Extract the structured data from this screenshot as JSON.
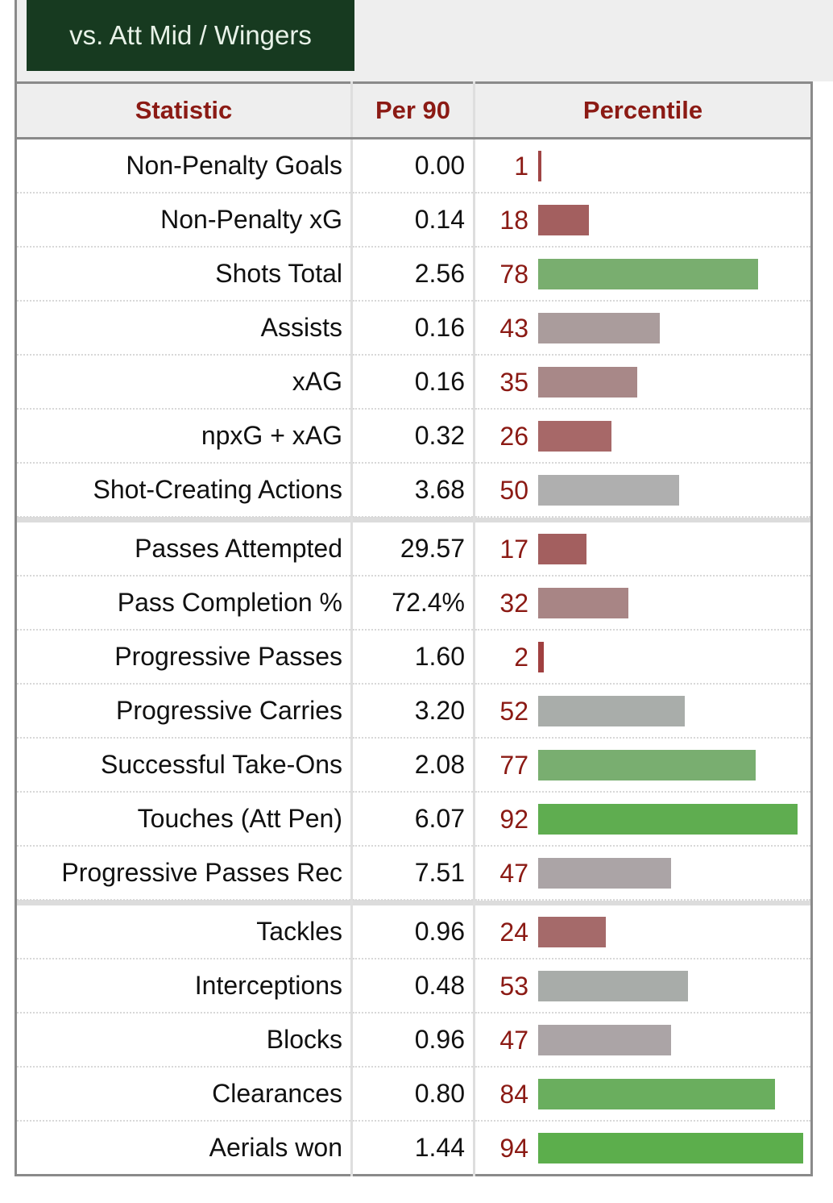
{
  "tab_label": "vs. Att Mid / Wingers",
  "headers": {
    "statistic": "Statistic",
    "per90": "Per 90",
    "percentile": "Percentile"
  },
  "groups": [
    [
      {
        "stat": "Non-Penalty Goals",
        "per90": "0.00",
        "percentile": "1",
        "pct": 1,
        "color": "#a04545"
      },
      {
        "stat": "Non-Penalty xG",
        "per90": "0.14",
        "percentile": "18",
        "pct": 18,
        "color": "#a35f5f"
      },
      {
        "stat": "Shots Total",
        "per90": "2.56",
        "percentile": "78",
        "pct": 78,
        "color": "#79ae6f"
      },
      {
        "stat": "Assists",
        "per90": "0.16",
        "percentile": "43",
        "pct": 43,
        "color": "#aa9c9c"
      },
      {
        "stat": "xAG",
        "per90": "0.16",
        "percentile": "35",
        "pct": 35,
        "color": "#a88888"
      },
      {
        "stat": "npxG + xAG",
        "per90": "0.32",
        "percentile": "26",
        "pct": 26,
        "color": "#a76868"
      },
      {
        "stat": "Shot-Creating Actions",
        "per90": "3.68",
        "percentile": "50",
        "pct": 50,
        "color": "#afafaf"
      }
    ],
    [
      {
        "stat": "Passes Attempted",
        "per90": "29.57",
        "percentile": "17",
        "pct": 17,
        "color": "#a35f5f"
      },
      {
        "stat": "Pass Completion %",
        "per90": "72.4%",
        "percentile": "32",
        "pct": 32,
        "color": "#a88585"
      },
      {
        "stat": "Progressive Passes",
        "per90": "1.60",
        "percentile": "2",
        "pct": 2,
        "color": "#a04040"
      },
      {
        "stat": "Progressive Carries",
        "per90": "3.20",
        "percentile": "52",
        "pct": 52,
        "color": "#a9adaa"
      },
      {
        "stat": "Successful Take-Ons",
        "per90": "2.08",
        "percentile": "77",
        "pct": 77,
        "color": "#79ae70"
      },
      {
        "stat": "Touches (Att Pen)",
        "per90": "6.07",
        "percentile": "92",
        "pct": 92,
        "color": "#5fad50"
      },
      {
        "stat": "Progressive Passes Rec",
        "per90": "7.51",
        "percentile": "47",
        "pct": 47,
        "color": "#aba4a6"
      }
    ],
    [
      {
        "stat": "Tackles",
        "per90": "0.96",
        "percentile": "24",
        "pct": 24,
        "color": "#a56a6a"
      },
      {
        "stat": "Interceptions",
        "per90": "0.48",
        "percentile": "53",
        "pct": 53,
        "color": "#a8aca9"
      },
      {
        "stat": "Blocks",
        "per90": "0.96",
        "percentile": "47",
        "pct": 47,
        "color": "#aba4a6"
      },
      {
        "stat": "Clearances",
        "per90": "0.80",
        "percentile": "84",
        "pct": 84,
        "color": "#6aae5e"
      },
      {
        "stat": "Aerials won",
        "per90": "1.44",
        "percentile": "94",
        "pct": 94,
        "color": "#5cae4c"
      }
    ]
  ]
}
